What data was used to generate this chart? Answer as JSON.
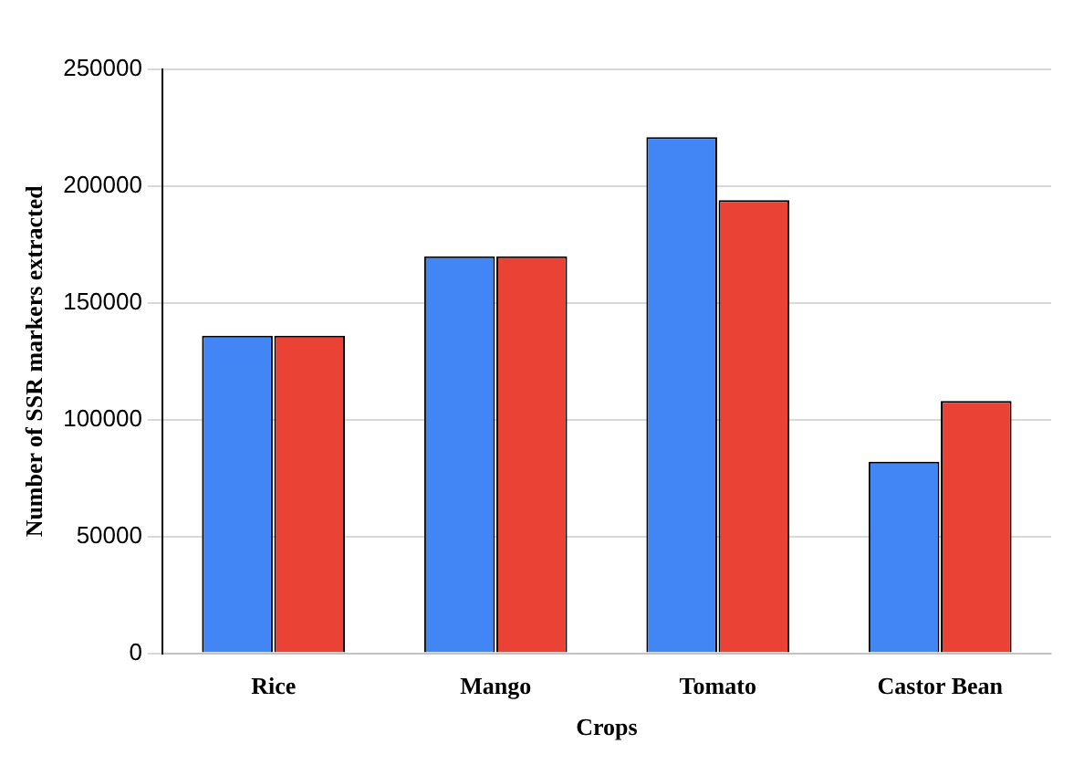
{
  "chart_data": {
    "type": "bar",
    "xlabel": "Crops",
    "ylabel": "Number of SSR markers extracted",
    "categories": [
      "Rice",
      "Mango",
      "Tomato",
      "Castor Bean"
    ],
    "series": [
      {
        "color": "#4285f4",
        "values": [
          136000,
          170000,
          221000,
          82000
        ]
      },
      {
        "color": "#ea4335",
        "values": [
          136000,
          170000,
          194000,
          108000
        ]
      }
    ],
    "ylim": [
      0,
      250000
    ],
    "yticks": [
      0,
      50000,
      100000,
      150000,
      200000,
      250000
    ],
    "grid": "y"
  }
}
